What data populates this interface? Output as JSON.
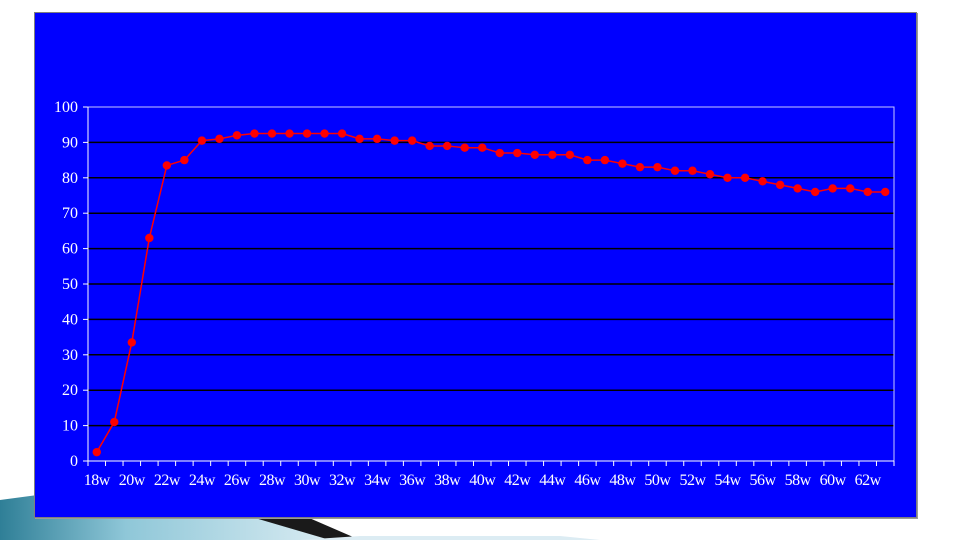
{
  "colors": {
    "background": "#ffffff",
    "plot_area": "#0000ff",
    "gridline": "#000000",
    "axis": "#ffffff",
    "series": "#ff0000"
  },
  "chart_data": {
    "type": "line",
    "title": "",
    "xlabel": "",
    "ylabel": "",
    "ylim": [
      0,
      100
    ],
    "yticks": [
      0,
      10,
      20,
      30,
      40,
      50,
      60,
      70,
      80,
      90,
      100
    ],
    "grid": true,
    "legend": "none",
    "x": [
      "18w",
      "19w",
      "20w",
      "21w",
      "22w",
      "23w",
      "24w",
      "25w",
      "26w",
      "27w",
      "28w",
      "29w",
      "30w",
      "31w",
      "32w",
      "33w",
      "34w",
      "35w",
      "36w",
      "37w",
      "38w",
      "39w",
      "40w",
      "41w",
      "42w",
      "43w",
      "44w",
      "45w",
      "46w",
      "47w",
      "48w",
      "49w",
      "50w",
      "51w",
      "52w",
      "53w",
      "54w",
      "55w",
      "56w",
      "57w",
      "58w",
      "59w",
      "60w",
      "61w",
      "62w",
      "63w"
    ],
    "x_tick_labels": [
      "18w",
      "20w",
      "22w",
      "24w",
      "26w",
      "28w",
      "30w",
      "32w",
      "34w",
      "36w",
      "38w",
      "40w",
      "42w",
      "44w",
      "46w",
      "48w",
      "50w",
      "52w",
      "54w",
      "56w",
      "58w",
      "60w",
      "62w"
    ],
    "series": [
      {
        "values": [
          2.5,
          11,
          33.5,
          63,
          83.5,
          85,
          90.5,
          91,
          92,
          92.5,
          92.5,
          92.5,
          92.5,
          92.5,
          92.5,
          91,
          91,
          90.5,
          90.5,
          89,
          89,
          88.5,
          88.5,
          87,
          87,
          86.5,
          86.5,
          86.5,
          85,
          85,
          84,
          83,
          83,
          82,
          82,
          81,
          80,
          80,
          79,
          78,
          77,
          76,
          77,
          77,
          76,
          76
        ]
      }
    ]
  }
}
